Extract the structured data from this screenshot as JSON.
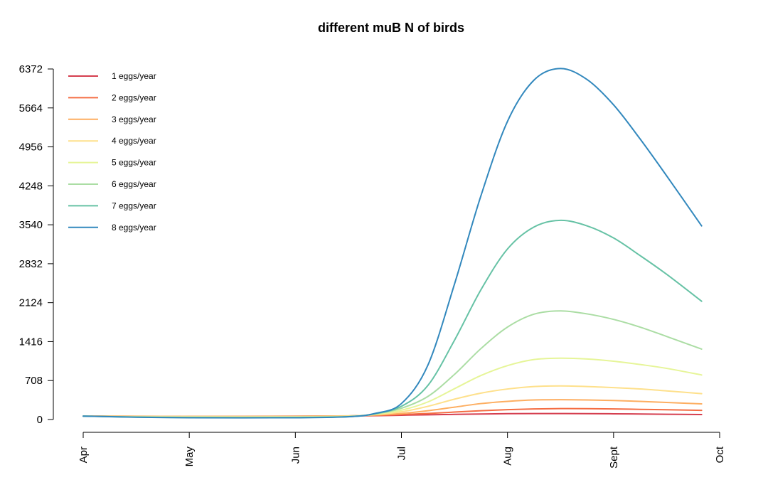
{
  "chart_data": {
    "type": "line",
    "title": "different muB N of birds",
    "xlabel": "",
    "ylabel": "",
    "x_ticks": [
      "Apr",
      "May",
      "Jun",
      "Jul",
      "Aug",
      "Sept",
      "Oct"
    ],
    "xlim": [
      0,
      6
    ],
    "y_ticks": [
      0,
      708,
      1416,
      2124,
      2832,
      3540,
      4248,
      4956,
      5664,
      6372
    ],
    "ylim": [
      0,
      6372
    ],
    "grid": false,
    "legend_position": "top-left",
    "x": [
      0,
      0.5,
      1,
      1.5,
      2,
      2.5,
      2.75,
      3,
      3.25,
      3.5,
      3.75,
      4,
      4.25,
      4.5,
      4.75,
      5,
      5.25,
      5.5,
      5.83
    ],
    "series": [
      {
        "name": "1 eggs/year",
        "color": "#d53e4f",
        "values": [
          62,
          58,
          56,
          57,
          60,
          65,
          70,
          78,
          86,
          93,
          100,
          106,
          108,
          108,
          107,
          104,
          100,
          96,
          90
        ]
      },
      {
        "name": "2 eggs/year",
        "color": "#f46d43",
        "values": [
          62,
          60,
          58,
          58,
          60,
          65,
          75,
          90,
          110,
          135,
          160,
          180,
          192,
          198,
          197,
          192,
          185,
          177,
          167
        ]
      },
      {
        "name": "3 eggs/year",
        "color": "#fdae61",
        "values": [
          62,
          60,
          58,
          57,
          59,
          67,
          82,
          110,
          160,
          225,
          290,
          330,
          355,
          360,
          355,
          345,
          330,
          310,
          285
        ]
      },
      {
        "name": "4 eggs/year",
        "color": "#fee08b",
        "values": [
          62,
          56,
          52,
          50,
          52,
          62,
          88,
          140,
          240,
          370,
          480,
          555,
          600,
          610,
          600,
          580,
          555,
          520,
          470
        ]
      },
      {
        "name": "5 eggs/year",
        "color": "#e6f598",
        "values": [
          62,
          50,
          45,
          44,
          46,
          58,
          95,
          170,
          320,
          560,
          800,
          980,
          1090,
          1115,
          1100,
          1060,
          1000,
          930,
          810
        ]
      },
      {
        "name": "6 eggs/year",
        "color": "#abdda4",
        "values": [
          62,
          46,
          38,
          36,
          39,
          54,
          100,
          205,
          420,
          820,
          1290,
          1680,
          1915,
          1975,
          1920,
          1820,
          1680,
          1510,
          1280
        ]
      },
      {
        "name": "7 eggs/year",
        "color": "#66c2a5",
        "values": [
          62,
          44,
          35,
          33,
          36,
          52,
          105,
          240,
          620,
          1440,
          2360,
          3100,
          3500,
          3620,
          3520,
          3300,
          2980,
          2640,
          2150
        ]
      },
      {
        "name": "8 eggs/year",
        "color": "#3288bd",
        "values": [
          62,
          42,
          32,
          30,
          33,
          50,
          110,
          290,
          990,
          2460,
          4070,
          5420,
          6170,
          6380,
          6180,
          5720,
          5100,
          4430,
          3520
        ]
      }
    ]
  }
}
